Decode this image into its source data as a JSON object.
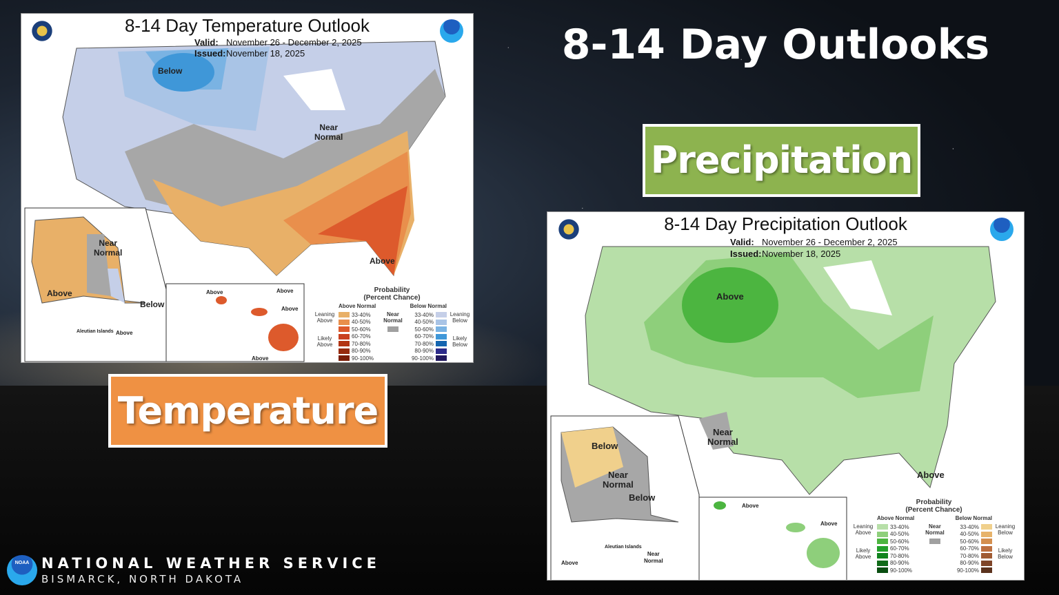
{
  "slide_title": "8-14 Day Outlooks",
  "precip_tag": {
    "label": "Precipitation",
    "color": "#8db34f"
  },
  "temp_tag": {
    "label": "Temperature",
    "color": "#ef9143"
  },
  "temp_map": {
    "title": "8-14 Day Temperature Outlook",
    "valid_label": "Valid:",
    "valid": "November 26 - December 2, 2025",
    "issued_label": "Issued:",
    "issued": "November 18, 2025",
    "regions": {
      "below": "Below",
      "near_normal": "Near\nNormal",
      "ak_near": "Near\nNormal",
      "ak_above": "Above",
      "ak_below": "Below",
      "fl_above": "Above",
      "aleutian": "Aleutian Islands",
      "aleutian_above": "Above",
      "hi_above1": "Above",
      "hi_above2": "Above",
      "hi_above3": "Above",
      "hi_above4": "Above"
    }
  },
  "precip_map": {
    "title": "8-14 Day Precipitation Outlook",
    "valid_label": "Valid:",
    "valid": "November 26 - December 2, 2025",
    "issued_label": "Issued:",
    "issued": "November 18, 2025",
    "regions": {
      "above": "Above",
      "near_normal": "Near\nNormal",
      "fl_above": "Above",
      "ak_below": "Below",
      "ak_near": "Near\nNormal",
      "ak_below2": "Below",
      "aleutian": "Aleutian Islands",
      "aleutian_above": "Above",
      "aleutian_near": "Near\nNormal",
      "hi_above1": "Above",
      "hi_above2": "Above"
    }
  },
  "temp_legend": {
    "title": "Probability\n(Percent Chance)",
    "above_header": "Above Normal",
    "below_header": "Below Normal",
    "near": "Near\nNormal",
    "near_color": "#a0a0a0",
    "leaning_above": "Leaning\nAbove",
    "likely_above": "Likely\nAbove",
    "leaning_below": "Leaning\nBelow",
    "likely_below": "Likely\nBelow",
    "ranges": [
      "33-40%",
      "40-50%",
      "50-60%",
      "60-70%",
      "70-80%",
      "80-90%",
      "90-100%"
    ],
    "above_colors": [
      "#e8b068",
      "#e98f4c",
      "#dd5a2c",
      "#c9401f",
      "#b23413",
      "#962a0d",
      "#7a1e08"
    ],
    "below_colors": [
      "#c5cfe8",
      "#a9c4e6",
      "#7ab3e3",
      "#3f97d8",
      "#1565b0",
      "#2c2b8a",
      "#22195e"
    ]
  },
  "precip_legend": {
    "title": "Probability\n(Percent Chance)",
    "above_header": "Above Normal",
    "below_header": "Below Normal",
    "near": "Near\nNormal",
    "near_color": "#a0a0a0",
    "leaning_above": "Leaning\nAbove",
    "likely_above": "Likely\nAbove",
    "leaning_below": "Leaning\nBelow",
    "likely_below": "Likely\nBelow",
    "ranges": [
      "33-40%",
      "40-50%",
      "50-60%",
      "60-70%",
      "70-80%",
      "80-90%",
      "90-100%"
    ],
    "above_colors": [
      "#b7dfa8",
      "#8ecf7b",
      "#4cb540",
      "#22a02a",
      "#11841e",
      "#106b18",
      "#0a4e10"
    ],
    "below_colors": [
      "#f0d08c",
      "#e7b36a",
      "#d48f4e",
      "#bd7040",
      "#a05b33",
      "#7f4528",
      "#5b321d"
    ]
  },
  "footer": {
    "org": "NATIONAL WEATHER SERVICE",
    "office": "BISMARCK, NORTH DAKOTA",
    "logo_text": "NOAA"
  }
}
